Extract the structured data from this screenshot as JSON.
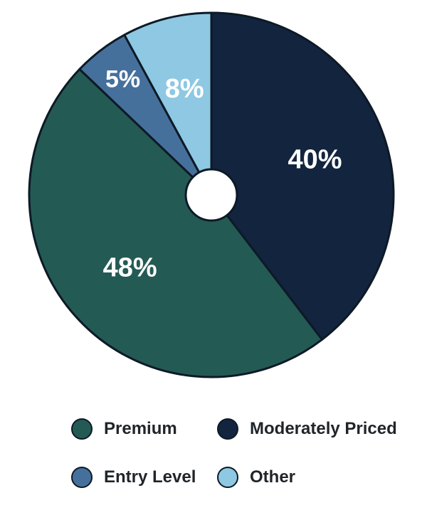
{
  "chart_data": {
    "type": "pie",
    "donut_hole": true,
    "title": "",
    "slices": [
      {
        "label": "Moderately Priced",
        "value": 40,
        "display": "40%",
        "color": "#13243f"
      },
      {
        "label": "Premium",
        "value": 48,
        "display": "48%",
        "color": "#245a54"
      },
      {
        "label": "Entry Level",
        "value": 5,
        "display": "5%",
        "color": "#46709c"
      },
      {
        "label": "Other",
        "value": 8,
        "display": "8%",
        "color": "#8ec8e2"
      }
    ],
    "legend": {
      "placement": "bottom",
      "items": [
        {
          "label": "Premium",
          "color": "#245a54"
        },
        {
          "label": "Moderately Priced",
          "color": "#13243f"
        },
        {
          "label": "Entry Level",
          "color": "#46709c"
        },
        {
          "label": "Other",
          "color": "#8ec8e2"
        }
      ]
    }
  }
}
